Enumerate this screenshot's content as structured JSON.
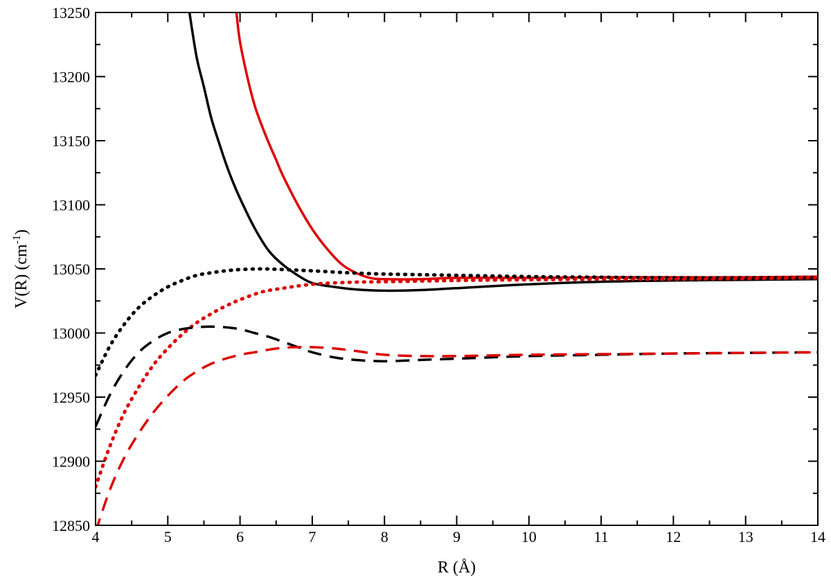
{
  "chart_data": {
    "type": "line",
    "title": "",
    "xlabel": "R (Å)",
    "ylabel_main": "V(R)  (cm",
    "ylabel_sup": "-1",
    "ylabel_tail": ")",
    "xlim": [
      4,
      14
    ],
    "ylim": [
      12850,
      13250
    ],
    "xticks": [
      4,
      5,
      6,
      7,
      8,
      9,
      10,
      11,
      12,
      13,
      14
    ],
    "yticks": [
      12850,
      12900,
      12950,
      13000,
      13050,
      13100,
      13150,
      13200,
      13250
    ],
    "grid": false,
    "legend": "none",
    "series": [
      {
        "color": "#000000",
        "style": "solid",
        "x": [
          5.3,
          5.4,
          5.5,
          5.6,
          5.7,
          5.8,
          5.9,
          6.0,
          6.2,
          6.4,
          6.6,
          6.8,
          7.0,
          7.3,
          7.6,
          8.0,
          8.5,
          9.0,
          10.0,
          11.0,
          12.0,
          13.0,
          14.0
        ],
        "y": [
          13250,
          13215,
          13192,
          13168,
          13150,
          13133,
          13118,
          13105,
          13082,
          13064,
          13053,
          13045,
          13039,
          13036,
          13034,
          13033,
          13033.5,
          13035,
          13038,
          13040,
          13041,
          13041.5,
          13042
        ]
      },
      {
        "color": "#dd0000",
        "style": "solid",
        "x": [
          5.95,
          6.0,
          6.1,
          6.2,
          6.3,
          6.4,
          6.5,
          6.6,
          6.8,
          7.0,
          7.2,
          7.4,
          7.6,
          7.8,
          8.0,
          8.5,
          9.0,
          10.0,
          11.0,
          12.0,
          13.0,
          14.0
        ],
        "y": [
          13250,
          13227,
          13200,
          13178,
          13162,
          13148,
          13135,
          13122,
          13100,
          13081,
          13066,
          13054,
          13047,
          13043,
          13042,
          13042,
          13043,
          13043,
          13043.5,
          13043.5,
          13043.5,
          13044
        ]
      },
      {
        "color": "#000000",
        "style": "dotted",
        "x": [
          4.0,
          4.2,
          4.4,
          4.6,
          4.8,
          5.0,
          5.2,
          5.4,
          5.6,
          5.8,
          6.0,
          6.3,
          6.6,
          7.0,
          7.5,
          8.0,
          9.0,
          10.0,
          11.0,
          12.0,
          13.0,
          14.0
        ],
        "y": [
          12967,
          12990,
          13007,
          13020,
          13029,
          13036,
          13041,
          13045,
          13047,
          13048.5,
          13049.5,
          13050,
          13049.5,
          13048.5,
          13047,
          13046,
          13045,
          13044,
          13043.5,
          13043,
          13043,
          13043
        ]
      },
      {
        "color": "#dd0000",
        "style": "dotted",
        "x": [
          4.0,
          4.2,
          4.4,
          4.6,
          4.8,
          5.0,
          5.2,
          5.4,
          5.6,
          5.8,
          6.0,
          6.3,
          6.6,
          7.0,
          7.5,
          8.0,
          9.0,
          10.0,
          11.0,
          12.0,
          13.0,
          14.0
        ],
        "y": [
          12880,
          12912,
          12938,
          12958,
          12975,
          12988,
          12999,
          13008,
          13015,
          13021,
          13026,
          13032,
          13035,
          13038,
          13039.5,
          13040,
          13041,
          13041.5,
          13042,
          13042,
          13042.5,
          13043
        ]
      },
      {
        "color": "#000000",
        "style": "dashed",
        "x": [
          4.0,
          4.2,
          4.4,
          4.6,
          4.8,
          5.0,
          5.2,
          5.4,
          5.6,
          5.8,
          6.0,
          6.2,
          6.4,
          6.6,
          6.8,
          7.0,
          7.3,
          7.6,
          8.0,
          8.5,
          9.0,
          10.0,
          11.0,
          12.0,
          13.0,
          14.0
        ],
        "y": [
          12927,
          12952,
          12971,
          12985,
          12994,
          13000,
          13003,
          13004.5,
          13005,
          13004.5,
          13003,
          13000,
          12997,
          12993,
          12989,
          12985,
          12981,
          12979,
          12978,
          12979,
          12980,
          12982,
          12983,
          12984,
          12984.5,
          12985
        ]
      },
      {
        "color": "#dd0000",
        "style": "dashed",
        "x": [
          4.0,
          4.2,
          4.4,
          4.6,
          4.8,
          5.0,
          5.2,
          5.4,
          5.6,
          5.8,
          6.0,
          6.2,
          6.4,
          6.6,
          6.8,
          7.0,
          7.3,
          7.6,
          8.0,
          8.5,
          9.0,
          10.0,
          11.0,
          12.0,
          13.0,
          14.0
        ],
        "y": [
          12845,
          12878,
          12903,
          12922,
          12938,
          12951,
          12962,
          12970,
          12976,
          12980,
          12983,
          12985,
          12987,
          12988.5,
          12989,
          12989,
          12988,
          12986,
          12983,
          12982,
          12982,
          12983,
          12983.5,
          12984,
          12984.5,
          12985
        ]
      }
    ]
  }
}
